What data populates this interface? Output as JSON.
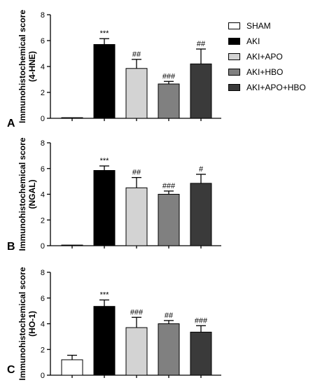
{
  "panel_letters": [
    "A",
    "B",
    "C"
  ],
  "legend": {
    "position": "top-right",
    "items": [
      {
        "label": "SHAM",
        "color": "#ffffff"
      },
      {
        "label": "AKI",
        "color": "#000000"
      },
      {
        "label": "AKI+APO",
        "color": "#d3d3d3"
      },
      {
        "label": "AKI+HBO",
        "color": "#808080"
      },
      {
        "label": "AKI+APO+HBO",
        "color": "#3a3a3a"
      }
    ]
  },
  "chart_data": [
    {
      "type": "bar",
      "panel": "A",
      "ylabel_line1": "Immunohistochemical score",
      "ylabel_line2": "(4-HNE)",
      "ylim": [
        0,
        8
      ],
      "yticks": [
        0,
        2,
        4,
        6,
        8
      ],
      "grid": false,
      "series": [
        {
          "name": "SHAM",
          "value": 0.05,
          "error": 0,
          "annotation": ""
        },
        {
          "name": "AKI",
          "value": 5.7,
          "error": 0.45,
          "annotation": "***"
        },
        {
          "name": "AKI+APO",
          "value": 3.85,
          "error": 0.7,
          "annotation": "##"
        },
        {
          "name": "AKI+HBO",
          "value": 2.65,
          "error": 0.2,
          "annotation": "###"
        },
        {
          "name": "AKI+APO+HBO",
          "value": 4.2,
          "error": 1.15,
          "annotation": "##"
        }
      ]
    },
    {
      "type": "bar",
      "panel": "B",
      "ylabel_line1": "Immunohistochemical score",
      "ylabel_line2": "(NGAL)",
      "ylim": [
        0,
        8
      ],
      "yticks": [
        0,
        2,
        4,
        6,
        8
      ],
      "grid": false,
      "series": [
        {
          "name": "SHAM",
          "value": 0.05,
          "error": 0,
          "annotation": ""
        },
        {
          "name": "AKI",
          "value": 5.85,
          "error": 0.35,
          "annotation": "***"
        },
        {
          "name": "AKI+APO",
          "value": 4.5,
          "error": 0.8,
          "annotation": "##"
        },
        {
          "name": "AKI+HBO",
          "value": 4.0,
          "error": 0.25,
          "annotation": "###"
        },
        {
          "name": "AKI+APO+HBO",
          "value": 4.85,
          "error": 0.7,
          "annotation": "#"
        }
      ]
    },
    {
      "type": "bar",
      "panel": "C",
      "ylabel_line1": "Immunohistochemical score",
      "ylabel_line2": "(HO-1)",
      "ylim": [
        0,
        8
      ],
      "yticks": [
        0,
        2,
        4,
        6,
        8
      ],
      "grid": false,
      "series": [
        {
          "name": "SHAM",
          "value": 1.2,
          "error": 0.35,
          "annotation": ""
        },
        {
          "name": "AKI",
          "value": 5.35,
          "error": 0.5,
          "annotation": "***"
        },
        {
          "name": "AKI+APO",
          "value": 3.7,
          "error": 0.8,
          "annotation": "###"
        },
        {
          "name": "AKI+HBO",
          "value": 4.0,
          "error": 0.25,
          "annotation": "##"
        },
        {
          "name": "AKI+APO+HBO",
          "value": 3.35,
          "error": 0.5,
          "annotation": "###"
        }
      ]
    }
  ]
}
